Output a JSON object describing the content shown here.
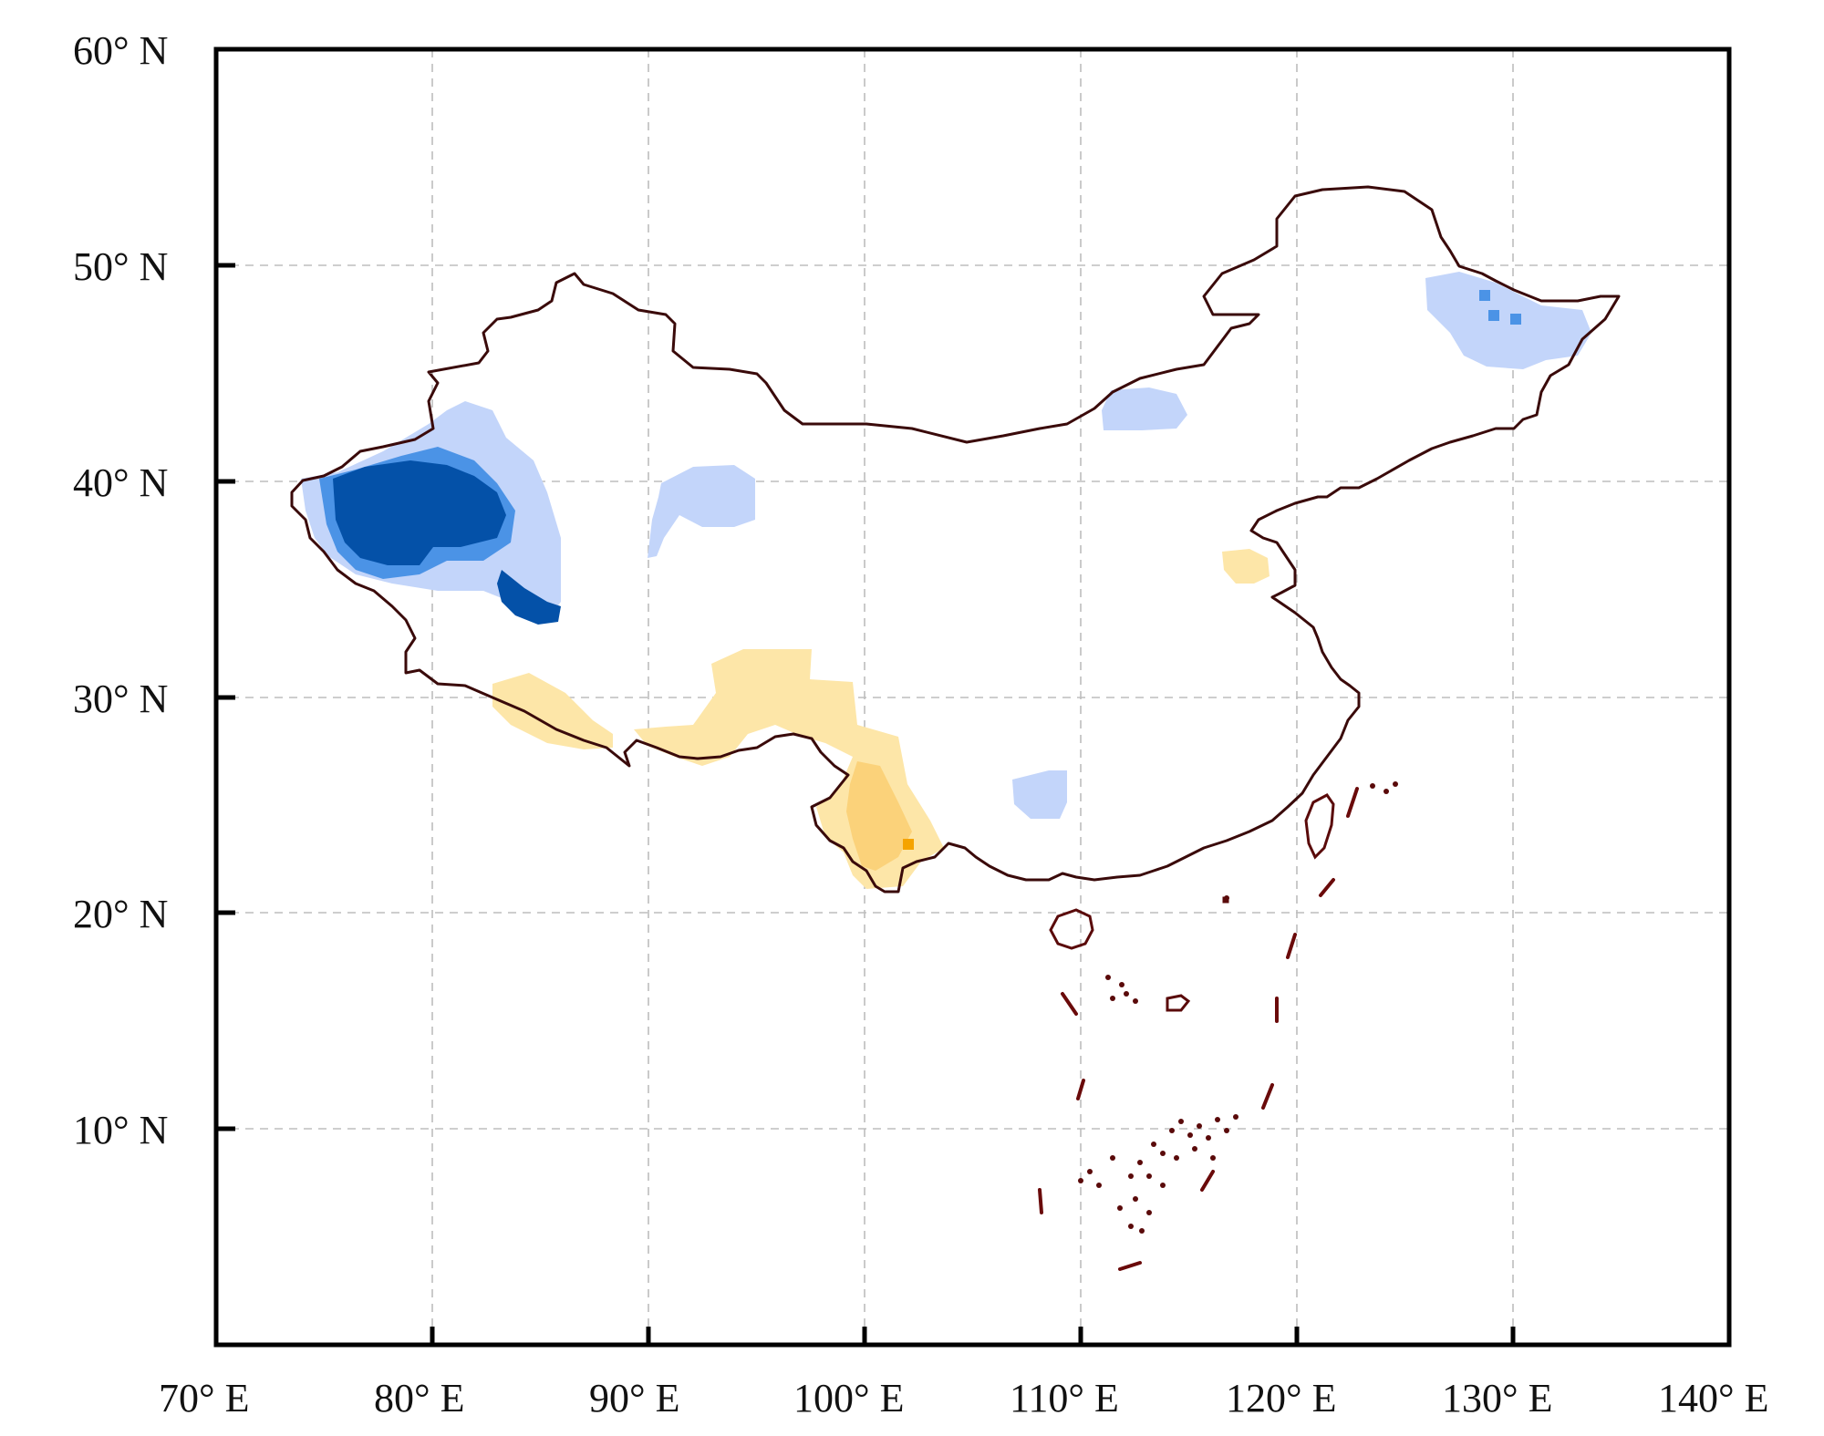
{
  "map": {
    "axes": {
      "x_ticks": [
        "70° E",
        "80° E",
        "90° E",
        "100° E",
        "110° E",
        "120° E",
        "130° E",
        "140° E"
      ],
      "y_ticks": [
        "60° N",
        "50° N",
        "40° N",
        "30° N",
        "20° N",
        "10° N"
      ],
      "lon_range": [
        70,
        140
      ],
      "lat_range": [
        0,
        60
      ],
      "grid": true
    },
    "colors": {
      "dark_blue": "#0451a8",
      "mid_blue": "#4b93e6",
      "light_blue": "#c3d5fa",
      "light_yellow": "#fde6a8",
      "mid_yellow": "#fbd27a",
      "orange": "#f5a300",
      "border": "#3a0a0a"
    },
    "regions": [
      {
        "name": "western-tarim-core",
        "level": "dark_blue"
      },
      {
        "name": "western-tarim-surround",
        "level": "light_blue"
      },
      {
        "name": "qaidam-patch",
        "level": "light_blue"
      },
      {
        "name": "inner-mongolia-patch",
        "level": "light_blue"
      },
      {
        "name": "northeast-patch",
        "level": "light_blue"
      },
      {
        "name": "guangxi-patch",
        "level": "light_blue"
      },
      {
        "name": "southern-tibet-yunnan",
        "level": "light_yellow"
      },
      {
        "name": "yunnan-core",
        "level": "mid_yellow"
      },
      {
        "name": "shandong-patch",
        "level": "light_yellow"
      }
    ]
  }
}
